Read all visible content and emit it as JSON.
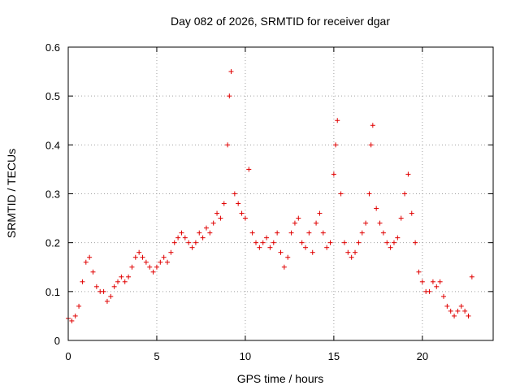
{
  "chart_data": {
    "type": "scatter",
    "title": "Day 082 of 2026, SRMTID for receiver dgar",
    "xlabel": "GPS time / hours",
    "ylabel": "SRMTID / TECUs",
    "xlim": [
      0,
      24
    ],
    "ylim": [
      0,
      0.6
    ],
    "xticks": [
      0,
      5,
      10,
      15,
      20
    ],
    "xtick_labels": [
      "0",
      "5",
      "10",
      "15",
      "20"
    ],
    "yticks": [
      0,
      0.1,
      0.2,
      0.3,
      0.4,
      0.5,
      0.6
    ],
    "ytick_labels": [
      "0",
      "0.1",
      "0.2",
      "0.3",
      "0.4",
      "0.5",
      "0.6"
    ],
    "grid": true,
    "marker": "+",
    "color": "#e00000",
    "series": [
      {
        "name": "SRMTID",
        "x": [
          0.0,
          0.2,
          0.4,
          0.6,
          0.8,
          1.0,
          1.2,
          1.4,
          1.6,
          1.8,
          2.0,
          2.2,
          2.4,
          2.6,
          2.8,
          3.0,
          3.2,
          3.4,
          3.6,
          3.8,
          4.0,
          4.2,
          4.4,
          4.6,
          4.8,
          5.0,
          5.2,
          5.4,
          5.6,
          5.8,
          6.0,
          6.2,
          6.4,
          6.6,
          6.8,
          7.0,
          7.2,
          7.4,
          7.6,
          7.8,
          8.0,
          8.2,
          8.4,
          8.6,
          8.8,
          9.0,
          9.1,
          9.2,
          9.4,
          9.6,
          9.8,
          10.0,
          10.2,
          10.4,
          10.6,
          10.8,
          11.0,
          11.2,
          11.4,
          11.6,
          11.8,
          12.0,
          12.2,
          12.4,
          12.6,
          12.8,
          13.0,
          13.2,
          13.4,
          13.6,
          13.8,
          14.0,
          14.2,
          14.4,
          14.6,
          14.8,
          15.0,
          15.1,
          15.2,
          15.4,
          15.6,
          15.8,
          16.0,
          16.2,
          16.4,
          16.6,
          16.8,
          17.0,
          17.1,
          17.2,
          17.4,
          17.6,
          17.8,
          18.0,
          18.2,
          18.4,
          18.6,
          18.8,
          19.0,
          19.2,
          19.4,
          19.6,
          19.8,
          20.0,
          20.2,
          20.4,
          20.6,
          20.8,
          21.0,
          21.2,
          21.4,
          21.6,
          21.8,
          22.0,
          22.2,
          22.4,
          22.6,
          22.8
        ],
        "y": [
          0.045,
          0.04,
          0.05,
          0.07,
          0.12,
          0.16,
          0.17,
          0.14,
          0.11,
          0.1,
          0.1,
          0.08,
          0.09,
          0.11,
          0.12,
          0.13,
          0.12,
          0.13,
          0.15,
          0.17,
          0.18,
          0.17,
          0.16,
          0.15,
          0.14,
          0.15,
          0.16,
          0.17,
          0.16,
          0.18,
          0.2,
          0.21,
          0.22,
          0.21,
          0.2,
          0.19,
          0.2,
          0.22,
          0.21,
          0.23,
          0.22,
          0.24,
          0.26,
          0.25,
          0.28,
          0.4,
          0.5,
          0.55,
          0.3,
          0.28,
          0.26,
          0.25,
          0.35,
          0.22,
          0.2,
          0.19,
          0.2,
          0.21,
          0.19,
          0.2,
          0.22,
          0.18,
          0.15,
          0.17,
          0.22,
          0.24,
          0.25,
          0.2,
          0.19,
          0.22,
          0.18,
          0.24,
          0.26,
          0.22,
          0.19,
          0.2,
          0.34,
          0.4,
          0.45,
          0.3,
          0.2,
          0.18,
          0.17,
          0.18,
          0.2,
          0.22,
          0.24,
          0.3,
          0.4,
          0.44,
          0.27,
          0.24,
          0.22,
          0.2,
          0.19,
          0.2,
          0.21,
          0.25,
          0.3,
          0.34,
          0.26,
          0.2,
          0.14,
          0.12,
          0.1,
          0.1,
          0.12,
          0.11,
          0.12,
          0.09,
          0.07,
          0.06,
          0.05,
          0.06,
          0.07,
          0.06,
          0.05,
          0.13
        ]
      }
    ]
  }
}
